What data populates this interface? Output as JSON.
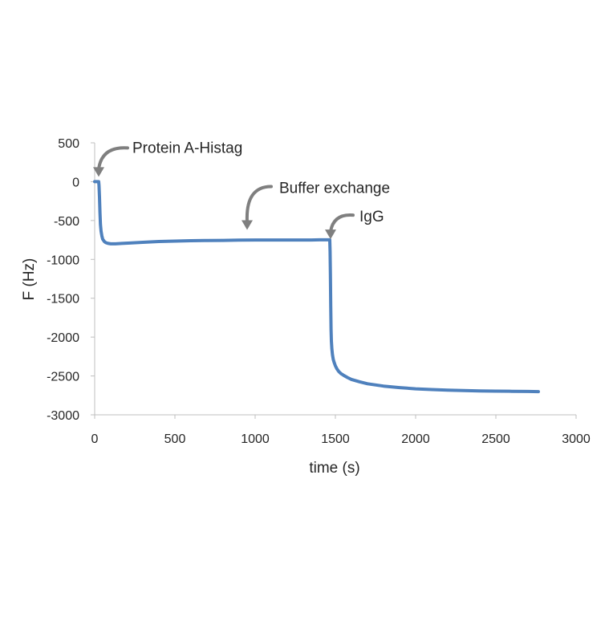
{
  "chart_data": {
    "type": "line",
    "title": "",
    "xlabel": "time (s)",
    "ylabel": "F (Hz)",
    "xlim": [
      0,
      3000
    ],
    "ylim": [
      -3000,
      500
    ],
    "xticks": [
      0,
      500,
      1000,
      1500,
      2000,
      2500,
      3000
    ],
    "yticks": [
      500,
      0,
      -500,
      -1000,
      -1500,
      -2000,
      -2500,
      -3000
    ],
    "grid": false,
    "legend": "none",
    "series": [
      {
        "color": "#4f81bd",
        "x": [
          0,
          25,
          27,
          30,
          33,
          36,
          40,
          45,
          50,
          60,
          70,
          85,
          100,
          130,
          170,
          220,
          300,
          400,
          500,
          600,
          700,
          800,
          900,
          1000,
          1100,
          1200,
          1300,
          1350,
          1400,
          1450,
          1465,
          1467,
          1469,
          1471,
          1473,
          1475,
          1478,
          1482,
          1487,
          1493,
          1500,
          1510,
          1520,
          1535,
          1550,
          1575,
          1600,
          1650,
          1700,
          1800,
          1900,
          2000,
          2100,
          2200,
          2300,
          2400,
          2500,
          2600,
          2700,
          2765
        ],
        "y": [
          0,
          0,
          -50,
          -200,
          -400,
          -550,
          -640,
          -700,
          -740,
          -770,
          -785,
          -795,
          -800,
          -800,
          -795,
          -790,
          -780,
          -770,
          -765,
          -760,
          -757,
          -755,
          -752,
          -750,
          -750,
          -750,
          -750,
          -750,
          -748,
          -748,
          -748,
          -900,
          -1200,
          -1600,
          -1900,
          -2050,
          -2150,
          -2230,
          -2290,
          -2330,
          -2370,
          -2410,
          -2440,
          -2470,
          -2490,
          -2520,
          -2545,
          -2575,
          -2600,
          -2630,
          -2650,
          -2665,
          -2675,
          -2682,
          -2688,
          -2692,
          -2695,
          -2697,
          -2700,
          -2702
        ]
      }
    ],
    "annotations": [
      {
        "text": "Protein A-Histag",
        "target": [
          25,
          0
        ]
      },
      {
        "text": "Buffer exchange",
        "target": [
          950,
          -600
        ]
      },
      {
        "text": "IgG",
        "target": [
          1470,
          -720
        ]
      }
    ]
  }
}
